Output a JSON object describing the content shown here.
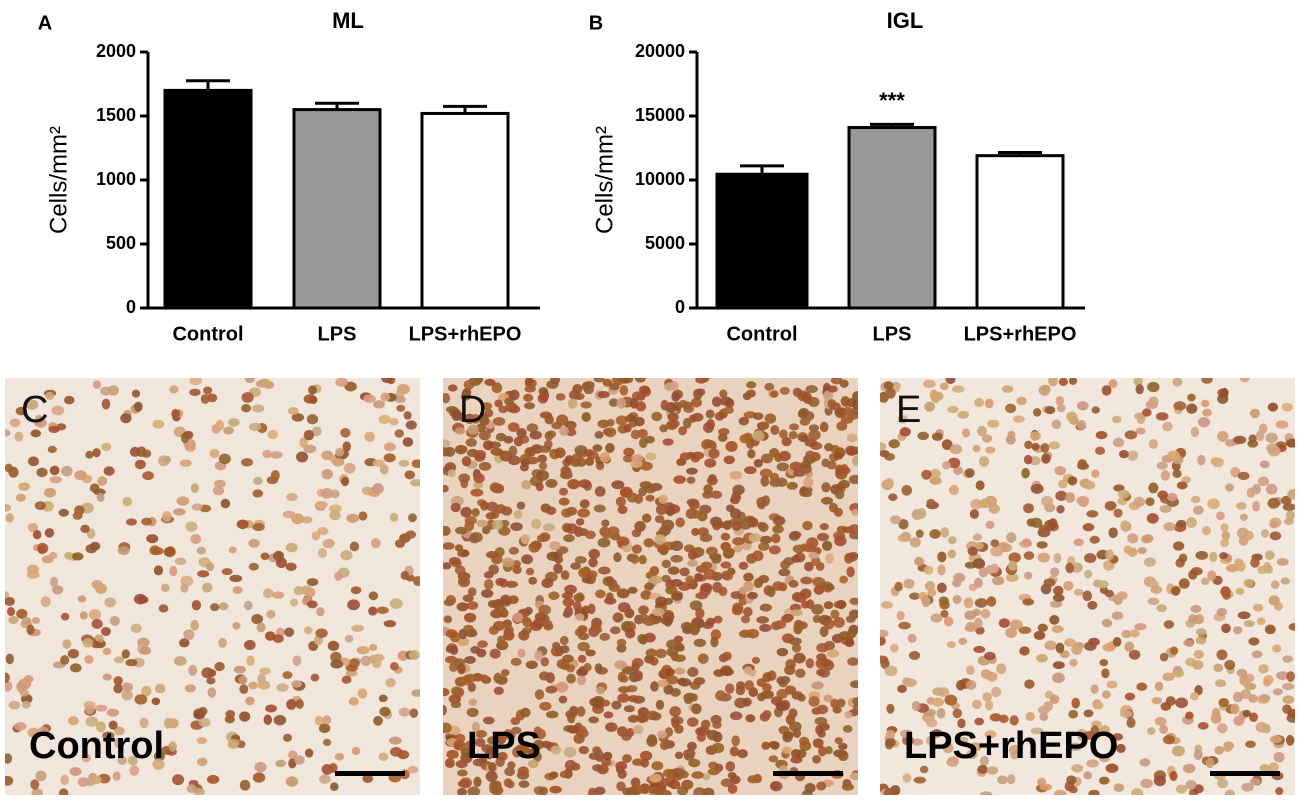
{
  "chart_data": [
    {
      "type": "bar",
      "panel": "A",
      "title": "ML",
      "y_label": "Cells/mm²",
      "categories": [
        "Control",
        "LPS",
        "LPS+rhEPO"
      ],
      "values": [
        1700,
        1550,
        1520
      ],
      "errors": [
        75,
        50,
        55
      ],
      "colors": [
        "#000000",
        "#999999",
        "#ffffff"
      ],
      "ylim": [
        0,
        2000
      ],
      "yticks": [
        0,
        500,
        1000,
        1500,
        2000
      ]
    },
    {
      "type": "bar",
      "panel": "B",
      "title": "IGL",
      "y_label": "Cells/mm²",
      "categories": [
        "Control",
        "LPS",
        "LPS+rhEPO"
      ],
      "values": [
        10450,
        14100,
        11900
      ],
      "errors": [
        650,
        250,
        250
      ],
      "colors": [
        "#000000",
        "#999999",
        "#ffffff"
      ],
      "ylim": [
        0,
        20000
      ],
      "yticks": [
        0,
        5000,
        10000,
        15000,
        20000
      ],
      "annotations": [
        {
          "text": "***",
          "category": "LPS"
        }
      ]
    }
  ],
  "images": [
    {
      "panel": "C",
      "label": "Control"
    },
    {
      "panel": "D",
      "label": "LPS"
    },
    {
      "panel": "E",
      "label": "LPS+rhEPO"
    }
  ]
}
